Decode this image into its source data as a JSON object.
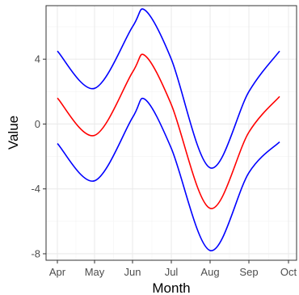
{
  "chart_data": {
    "type": "line",
    "xlabel": "Month",
    "ylabel": "Value",
    "x_tick_labels": [
      "Apr",
      "May",
      "Jun",
      "Jul",
      "Aug",
      "Sep",
      "Oct"
    ],
    "y_tick_labels": [
      "-8",
      "-4",
      "0",
      "4"
    ],
    "y_ticks": [
      -8,
      -4,
      0,
      4
    ],
    "ylim": [
      -8.4,
      7.3
    ],
    "grid": true,
    "x": [
      "Apr",
      "May",
      "Jun",
      "Jun 15",
      "Jul",
      "Aug",
      "Sep",
      "Sep 28"
    ],
    "series": [
      {
        "color": "#0000ff",
        "values": [
          4.5,
          2.2,
          6.0,
          7.0,
          4.0,
          -2.7,
          2.0,
          4.5
        ]
      },
      {
        "color": "#ff0000",
        "values": [
          1.6,
          -0.7,
          3.2,
          4.2,
          1.2,
          -5.2,
          -0.5,
          1.7
        ]
      },
      {
        "color": "#0000ff",
        "values": [
          -1.2,
          -3.5,
          0.4,
          1.5,
          -1.5,
          -7.8,
          -3.0,
          -1.1
        ]
      }
    ]
  }
}
